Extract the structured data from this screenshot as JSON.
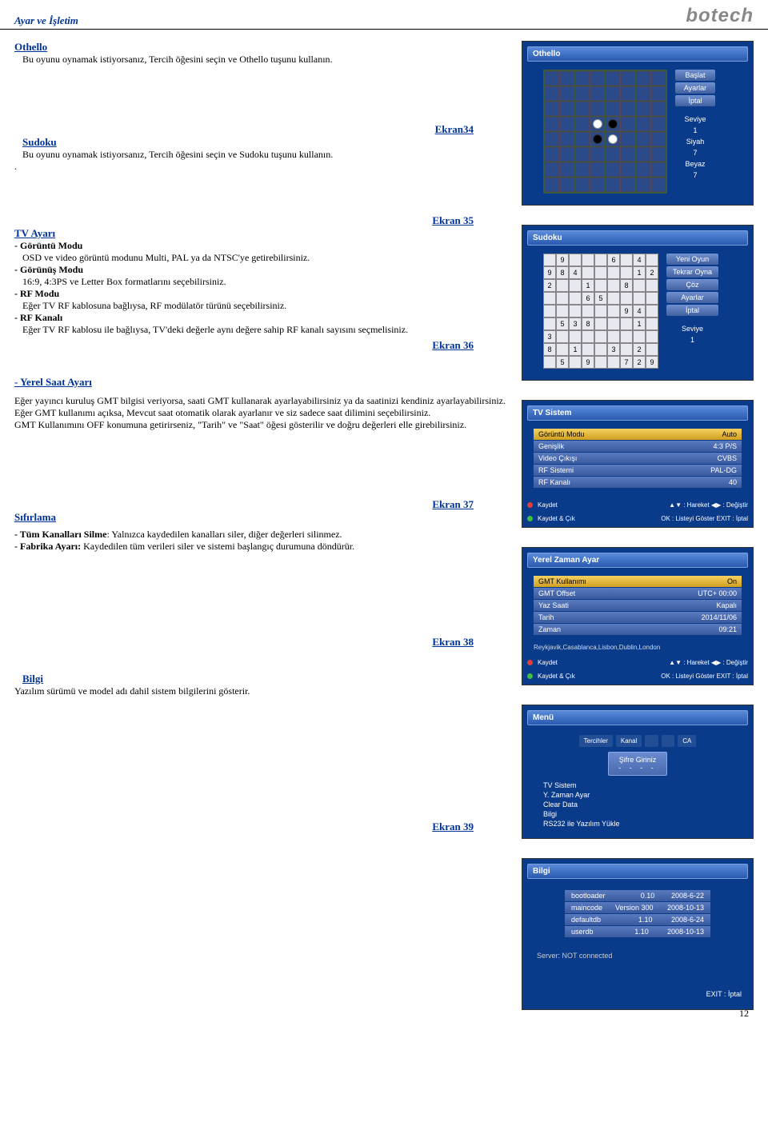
{
  "header": {
    "title": "Ayar ve İşletim",
    "logo": "botech"
  },
  "page_number": "12",
  "sections": {
    "othello": {
      "heading": "Othello",
      "text": "Bu oyunu oynamak istiyorsanız, Tercih öğesini seçin ve Othello tuşunu kullanın."
    },
    "sudoku": {
      "heading": "Sudoku",
      "ekran_above": "Ekran34",
      "text": "Bu oyunu oynamak istiyorsanız, Tercih öğesini seçin ve Sudoku tuşunu kullanın.",
      "dot": "."
    },
    "tv_ayari": {
      "ekran_above": "Ekran 35",
      "heading": "TV Ayarı",
      "items": [
        {
          "bold": "- Görüntü Modu",
          "text": "OSD ve video görüntü modunu Multi, PAL ya da NTSC'ye getirebilirsiniz."
        },
        {
          "bold": "- Görünüş Modu",
          "text": "16:9, 4:3PS ve Letter Box formatlarını seçebilirsiniz."
        },
        {
          "bold": "- RF Modu",
          "text": "Eğer TV RF kablosuna bağlıysa, RF modülatör türünü seçebilirsiniz."
        },
        {
          "bold": "- RF Kanalı",
          "text": "Eğer TV RF kablosu ile bağlıysa, TV'deki değerle aynı değere sahip RF kanalı sayısını seçmelisiniz."
        }
      ],
      "ekran": "Ekran 36"
    },
    "yerel_saat": {
      "heading": "- Yerel Saat Ayarı",
      "text": "Eğer yayıncı kuruluş GMT bilgisi veriyorsa, saati GMT kullanarak ayarlayabilirsiniz ya da saatinizi kendiniz ayarlayabilirsiniz. Eğer GMT kullanımı açıksa, Mevcut saat otomatik olarak ayarlanır ve siz sadece saat dilimini seçebilirsiniz.",
      "text2": "GMT Kullanımını OFF konumuna getirirseniz,  \"Tarih\" ve \"Saat\" öğesi gösterilir ve doğru değerleri elle girebilirsiniz.",
      "ekran": "Ekran 37"
    },
    "sifirlama": {
      "heading": "Sıfırlama",
      "line1_bold": "- Tüm Kanalları Silme",
      "line1_rest": ": Yalnızca kaydedilen kanalları siler, diğer değerleri silinmez.",
      "line2_bold": "- Fabrika Ayarı:",
      "line2_rest": " Kaydedilen tüm verileri siler ve sistemi başlangıç durumuna döndürür.",
      "ekran": "Ekran 38"
    },
    "bilgi": {
      "heading": "Bilgi",
      "text": "Yazılım sürümü ve model adı dahil sistem bilgilerini gösterir.",
      "ekran": "Ekran 39"
    }
  },
  "screenshots": {
    "othello": {
      "title": "Othello",
      "menu": [
        "Başlat",
        "Ayarlar",
        "İptal"
      ],
      "stats": [
        "Seviye",
        "1",
        "Siyah",
        "7",
        "Beyaz",
        "7"
      ],
      "board": [
        [
          0,
          0,
          0,
          0,
          0,
          0,
          0,
          0
        ],
        [
          0,
          0,
          0,
          0,
          0,
          0,
          0,
          0
        ],
        [
          0,
          0,
          0,
          0,
          0,
          0,
          0,
          0
        ],
        [
          0,
          0,
          0,
          2,
          1,
          0,
          0,
          0
        ],
        [
          0,
          0,
          0,
          1,
          2,
          0,
          0,
          0
        ],
        [
          0,
          0,
          0,
          0,
          0,
          0,
          0,
          0
        ],
        [
          0,
          0,
          0,
          0,
          0,
          0,
          0,
          0
        ],
        [
          0,
          0,
          0,
          0,
          0,
          0,
          0,
          0
        ]
      ]
    },
    "sudoku": {
      "title": "Sudoku",
      "menu": [
        "Yeni Oyun",
        "Tekrar Oyna",
        "Çöz",
        "Ayarlar",
        "İptal"
      ],
      "stats": [
        "Seviye",
        "1"
      ],
      "grid": [
        [
          "",
          "9",
          "",
          "",
          "",
          "6",
          "",
          "4",
          ""
        ],
        [
          "9",
          "8",
          "4",
          "",
          "",
          "",
          "",
          "1",
          "2"
        ],
        [
          "2",
          "",
          "",
          "1",
          "",
          "",
          "8",
          "",
          ""
        ],
        [
          "",
          "",
          "",
          "6",
          "5",
          "",
          "",
          "",
          ""
        ],
        [
          "",
          "",
          "",
          "",
          "",
          "",
          "9",
          "4",
          ""
        ],
        [
          "",
          "5",
          "3",
          "8",
          "",
          "",
          "",
          "1",
          ""
        ],
        [
          "3",
          "",
          "",
          "",
          "",
          "",
          "",
          "",
          ""
        ],
        [
          "8",
          "",
          "1",
          "",
          "",
          "3",
          "",
          "2",
          ""
        ],
        [
          "",
          "5",
          "",
          "9",
          "",
          "",
          "7",
          "2",
          "9"
        ]
      ]
    },
    "tv_sistem": {
      "title": "TV Sistem",
      "rows": [
        [
          "Görüntü Modu",
          "Auto",
          true
        ],
        [
          "Genişlik",
          "4:3 P/S",
          false
        ],
        [
          "Video Çıkışı",
          "CVBS",
          false
        ],
        [
          "RF Sistemi",
          "PAL-DG",
          false
        ],
        [
          "RF Kanalı",
          "40",
          false
        ]
      ],
      "hints": {
        "kaydet": "Kaydet",
        "kaydet_cik": "Kaydet & Çık",
        "hareket": "▲▼ : Hareket  ◀▶ : Değiştir",
        "ok": "OK : Listeyi Göster  EXIT : İptal"
      }
    },
    "yerel": {
      "title": "Yerel Zaman Ayar",
      "rows": [
        [
          "GMT Kullanımı",
          "On",
          true
        ],
        [
          "GMT Offset",
          "UTC+ 00:00",
          false
        ],
        [
          "Yaz Saati",
          "Kapalı",
          false
        ],
        [
          "Tarih",
          "2014/11/06",
          false
        ],
        [
          "Zaman",
          "09:21",
          false
        ]
      ],
      "cities": "Reykjavik,Casablanca,Lisbon,Dublin,London",
      "hints": {
        "kaydet": "Kaydet",
        "kaydet_cik": "Kaydet & Çık",
        "hareket": "▲▼ : Hareket  ◀▶ : Değiştir",
        "ok": "OK : Listeyi Göster  EXIT : İptal"
      }
    },
    "menu": {
      "title": "Menü",
      "tabs": [
        "Tercihler",
        "Kanal",
        "",
        "",
        "CA"
      ],
      "popup": "Şifre Giriniz",
      "popup_dots": "- - - -",
      "list": [
        "TV Sistem",
        "Y. Zaman Ayar",
        "Clear Data",
        "Bilgi",
        "RS232 ile Yazılım Yükle"
      ]
    },
    "bilgi": {
      "title": "Bilgi",
      "rows": [
        [
          "bootloader",
          "0.10",
          "2008-6-22"
        ],
        [
          "maincode",
          "Version 300",
          "2008-10-13"
        ],
        [
          "defaultdb",
          "1.10",
          "2008-6-24"
        ],
        [
          "userdb",
          "1.10",
          "2008-10-13"
        ]
      ],
      "server": "Server: NOT connected",
      "exit": "EXIT : İptal"
    }
  }
}
